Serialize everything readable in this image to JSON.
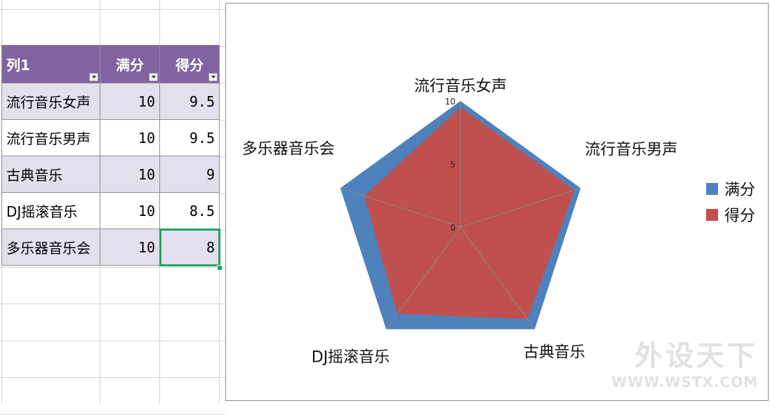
{
  "table": {
    "headers": [
      "列1",
      "满分",
      "得分"
    ],
    "rows": [
      {
        "label": "流行音乐女声",
        "full": "10",
        "score": "9.5"
      },
      {
        "label": "流行音乐男声",
        "full": "10",
        "score": "9.5"
      },
      {
        "label": "古典音乐",
        "full": "10",
        "score": "9"
      },
      {
        "label": "DJ摇滚音乐",
        "full": "10",
        "score": "8.5"
      },
      {
        "label": "多乐器音乐会",
        "full": "10",
        "score": "8"
      }
    ]
  },
  "chart_data": {
    "type": "radar",
    "categories": [
      "流行音乐女声",
      "流行音乐男声",
      "古典音乐",
      "DJ摇滚音乐",
      "多乐器音乐会"
    ],
    "series": [
      {
        "name": "满分",
        "values": [
          10,
          10,
          10,
          10,
          10
        ],
        "color": "#4f81bd"
      },
      {
        "name": "得分",
        "values": [
          9.5,
          9.5,
          9,
          8.5,
          8
        ],
        "color": "#c0504d"
      }
    ],
    "axis_ticks": [
      "0",
      "5",
      "10"
    ],
    "rmax": 10,
    "legend_position": "right"
  },
  "watermark": {
    "line1": "外设天下",
    "line2": "WWW.WSTX.COM"
  }
}
